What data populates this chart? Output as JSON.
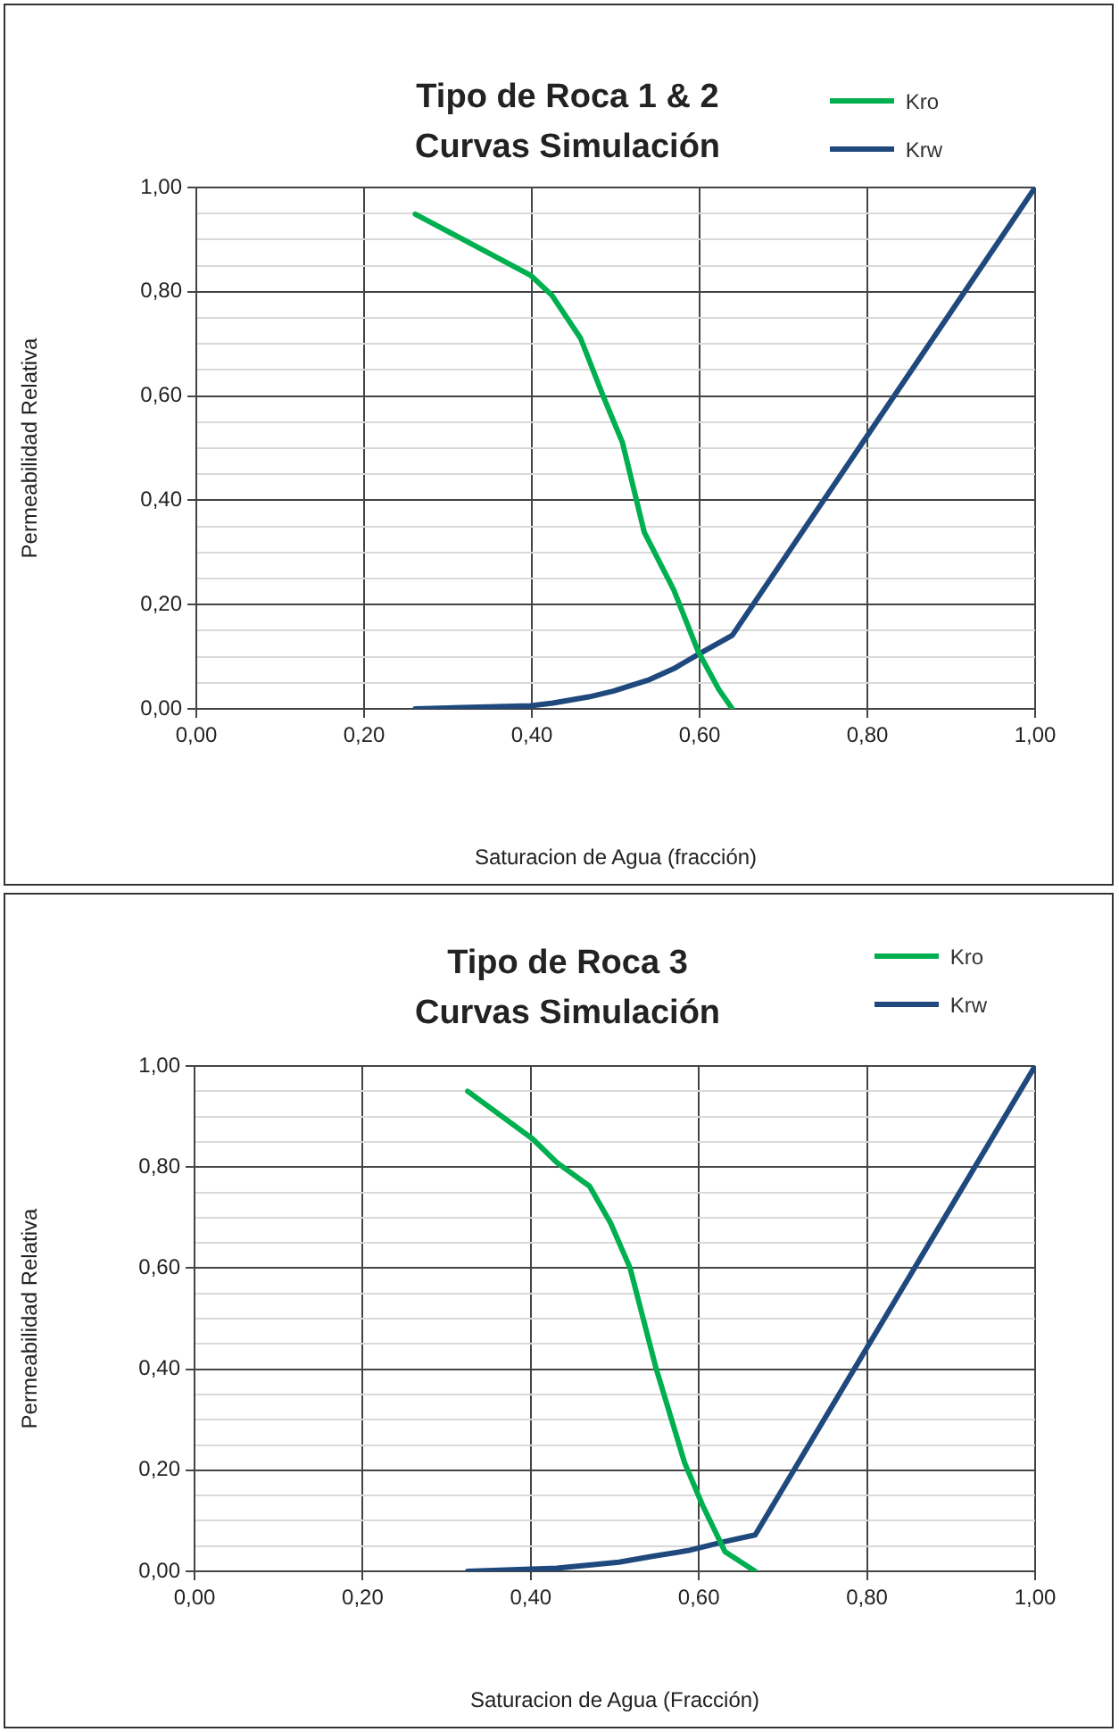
{
  "chart_data": [
    {
      "type": "line",
      "title": "Tipo de Roca 1 & 2\nCurvas Simulación",
      "xlabel": "Saturacion de Agua (fracción)",
      "ylabel": "Permeabilidad Relativa",
      "series": [
        {
          "name": "Kro",
          "color": "#00b050",
          "x": [
            0.261,
            0.399,
            0.424,
            0.458,
            0.486,
            0.508,
            0.534,
            0.569,
            0.598,
            0.623,
            0.639
          ],
          "values": [
            0.949,
            0.831,
            0.793,
            0.711,
            0.596,
            0.511,
            0.339,
            0.229,
            0.111,
            0.037,
            0
          ]
        },
        {
          "name": "Krw",
          "color": "#1f497d",
          "x": [
            0.261,
            0.399,
            0.425,
            0.468,
            0.497,
            0.54,
            0.569,
            0.599,
            0.639,
            1
          ],
          "values": [
            0,
            0.006,
            0.011,
            0.023,
            0.034,
            0.056,
            0.077,
            0.105,
            0.141,
            1
          ]
        }
      ],
      "xlim": [
        0,
        1
      ],
      "ylim": [
        0,
        1
      ],
      "xticks": [
        {
          "value": 0,
          "label": "0,00"
        },
        {
          "value": 0.2,
          "label": "0,20"
        },
        {
          "value": 0.4,
          "label": "0,40"
        },
        {
          "value": 0.6,
          "label": "0,60"
        },
        {
          "value": 0.8,
          "label": "0,80"
        },
        {
          "value": 1,
          "label": "1,00"
        }
      ],
      "yticks": [
        {
          "value": 0,
          "label": "0,00"
        },
        {
          "value": 0.05,
          "label": null
        },
        {
          "value": 0.1,
          "label": null
        },
        {
          "value": 0.15,
          "label": null
        },
        {
          "value": 0.2,
          "label": "0,20"
        },
        {
          "value": 0.25,
          "label": null
        },
        {
          "value": 0.3,
          "label": null
        },
        {
          "value": 0.35,
          "label": null
        },
        {
          "value": 0.4,
          "label": "0,40"
        },
        {
          "value": 0.45,
          "label": null
        },
        {
          "value": 0.5,
          "label": null
        },
        {
          "value": 0.55,
          "label": null
        },
        {
          "value": 0.6,
          "label": "0,60"
        },
        {
          "value": 0.65,
          "label": null
        },
        {
          "value": 0.7,
          "label": null
        },
        {
          "value": 0.75,
          "label": null
        },
        {
          "value": 0.8,
          "label": "0,80"
        },
        {
          "value": 0.85,
          "label": null
        },
        {
          "value": 0.9,
          "label": null
        },
        {
          "value": 0.95,
          "label": null
        },
        {
          "value": 1,
          "label": "1,00"
        }
      ],
      "grid": true,
      "legend": "top right"
    },
    {
      "type": "line",
      "title": "Tipo de Roca 3\nCurvas Simulación",
      "xlabel": "Saturacion de Agua (Fracción)",
      "ylabel": "Permeabilidad Relativa",
      "series": [
        {
          "name": "Kro",
          "color": "#00b050",
          "x": [
            0.325,
            0.402,
            0.431,
            0.47,
            0.495,
            0.518,
            0.549,
            0.583,
            0.604,
            0.631,
            0.667
          ],
          "values": [
            0.95,
            0.856,
            0.809,
            0.762,
            0.689,
            0.601,
            0.402,
            0.215,
            0.132,
            0.039,
            0
          ]
        },
        {
          "name": "Krw",
          "color": "#1f497d",
          "x": [
            0.325,
            0.431,
            0.505,
            0.546,
            0.587,
            0.631,
            0.667,
            1
          ],
          "values": [
            0,
            0.006,
            0.018,
            0.03,
            0.041,
            0.059,
            0.072,
            1
          ]
        }
      ],
      "xlim": [
        0,
        1
      ],
      "ylim": [
        0,
        1
      ],
      "xticks": [
        {
          "value": 0,
          "label": "0,00"
        },
        {
          "value": 0.2,
          "label": "0,20"
        },
        {
          "value": 0.4,
          "label": "0,40"
        },
        {
          "value": 0.6,
          "label": "0,60"
        },
        {
          "value": 0.8,
          "label": "0,80"
        },
        {
          "value": 1,
          "label": "1,00"
        }
      ],
      "yticks": [
        {
          "value": 0,
          "label": "0,00"
        },
        {
          "value": 0.05,
          "label": null
        },
        {
          "value": 0.1,
          "label": null
        },
        {
          "value": 0.15,
          "label": null
        },
        {
          "value": 0.2,
          "label": "0,20"
        },
        {
          "value": 0.25,
          "label": null
        },
        {
          "value": 0.3,
          "label": null
        },
        {
          "value": 0.35,
          "label": null
        },
        {
          "value": 0.4,
          "label": "0,40"
        },
        {
          "value": 0.45,
          "label": null
        },
        {
          "value": 0.5,
          "label": null
        },
        {
          "value": 0.55,
          "label": null
        },
        {
          "value": 0.6,
          "label": "0,60"
        },
        {
          "value": 0.65,
          "label": null
        },
        {
          "value": 0.7,
          "label": null
        },
        {
          "value": 0.75,
          "label": null
        },
        {
          "value": 0.8,
          "label": "0,80"
        },
        {
          "value": 0.85,
          "label": null
        },
        {
          "value": 0.9,
          "label": null
        },
        {
          "value": 0.95,
          "label": null
        },
        {
          "value": 1,
          "label": "1,00"
        }
      ],
      "grid": true,
      "legend": "top right"
    }
  ]
}
